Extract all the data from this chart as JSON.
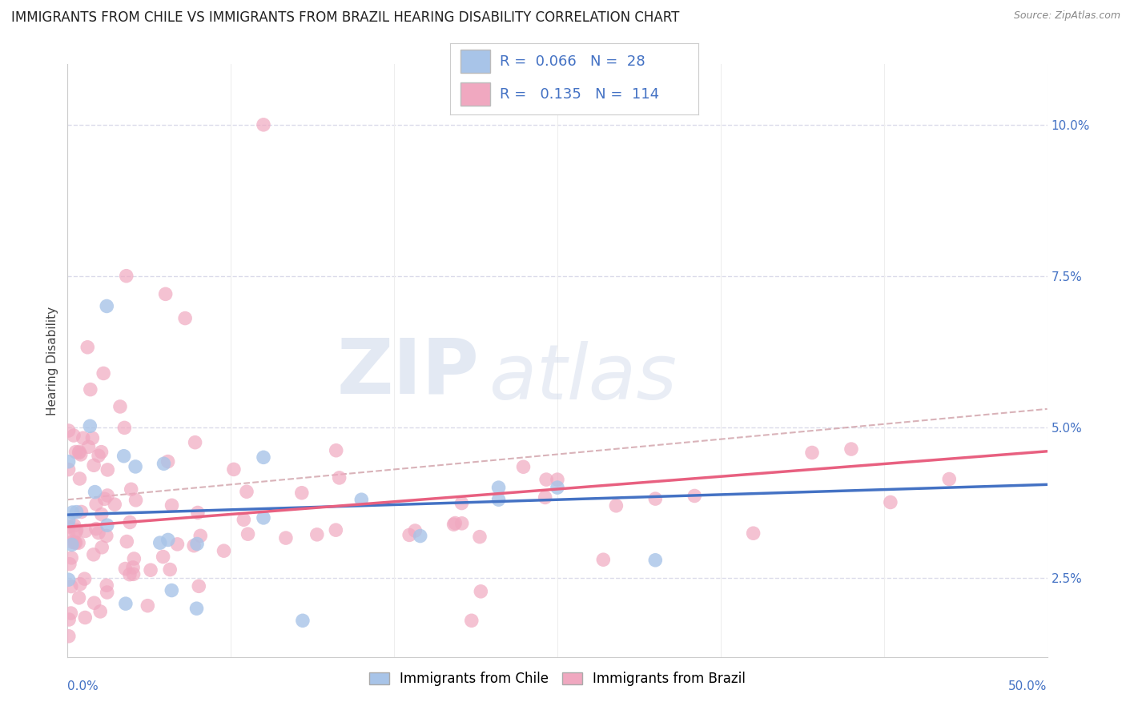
{
  "title": "IMMIGRANTS FROM CHILE VS IMMIGRANTS FROM BRAZIL HEARING DISABILITY CORRELATION CHART",
  "source": "Source: ZipAtlas.com",
  "ylabel": "Hearing Disability",
  "xlim": [
    0.0,
    50.0
  ],
  "ylim": [
    1.2,
    11.0
  ],
  "yticks": [
    2.5,
    5.0,
    7.5,
    10.0
  ],
  "chile_color": "#a8c4e8",
  "brazil_color": "#f0a8c0",
  "chile_line_color": "#4472c4",
  "brazil_line_color": "#e86080",
  "dashed_line_color": "#d0a0a8",
  "R_chile": 0.066,
  "N_chile": 28,
  "R_brazil": 0.135,
  "N_brazil": 114,
  "watermark_zip": "ZIP",
  "watermark_atlas": "atlas",
  "legend_label_chile": "Immigrants from Chile",
  "legend_label_brazil": "Immigrants from Brazil",
  "title_fontsize": 12,
  "axis_label_fontsize": 11,
  "tick_fontsize": 11,
  "background_color": "#ffffff",
  "grid_color": "#d8d8e8"
}
